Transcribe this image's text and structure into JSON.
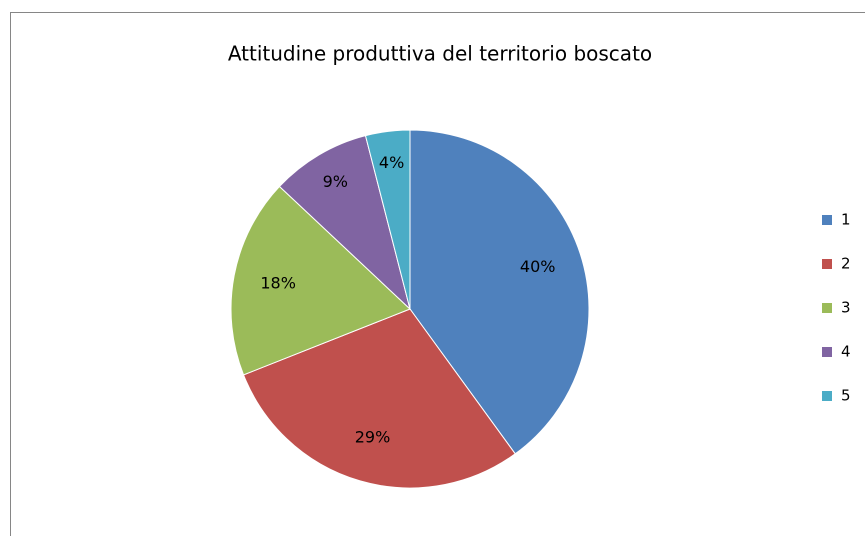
{
  "chart_data": {
    "type": "pie",
    "title": "Attitudine produttiva del territorio boscato",
    "categories": [
      "1",
      "2",
      "3",
      "4",
      "5"
    ],
    "values": [
      40,
      29,
      18,
      9,
      4
    ],
    "value_labels": [
      "40%",
      "29%",
      "18%",
      "9%",
      "4%"
    ],
    "colors": [
      "#4f81bd",
      "#c0504d",
      "#9bbb59",
      "#8064a2",
      "#4bacc6"
    ],
    "legend": "right"
  }
}
